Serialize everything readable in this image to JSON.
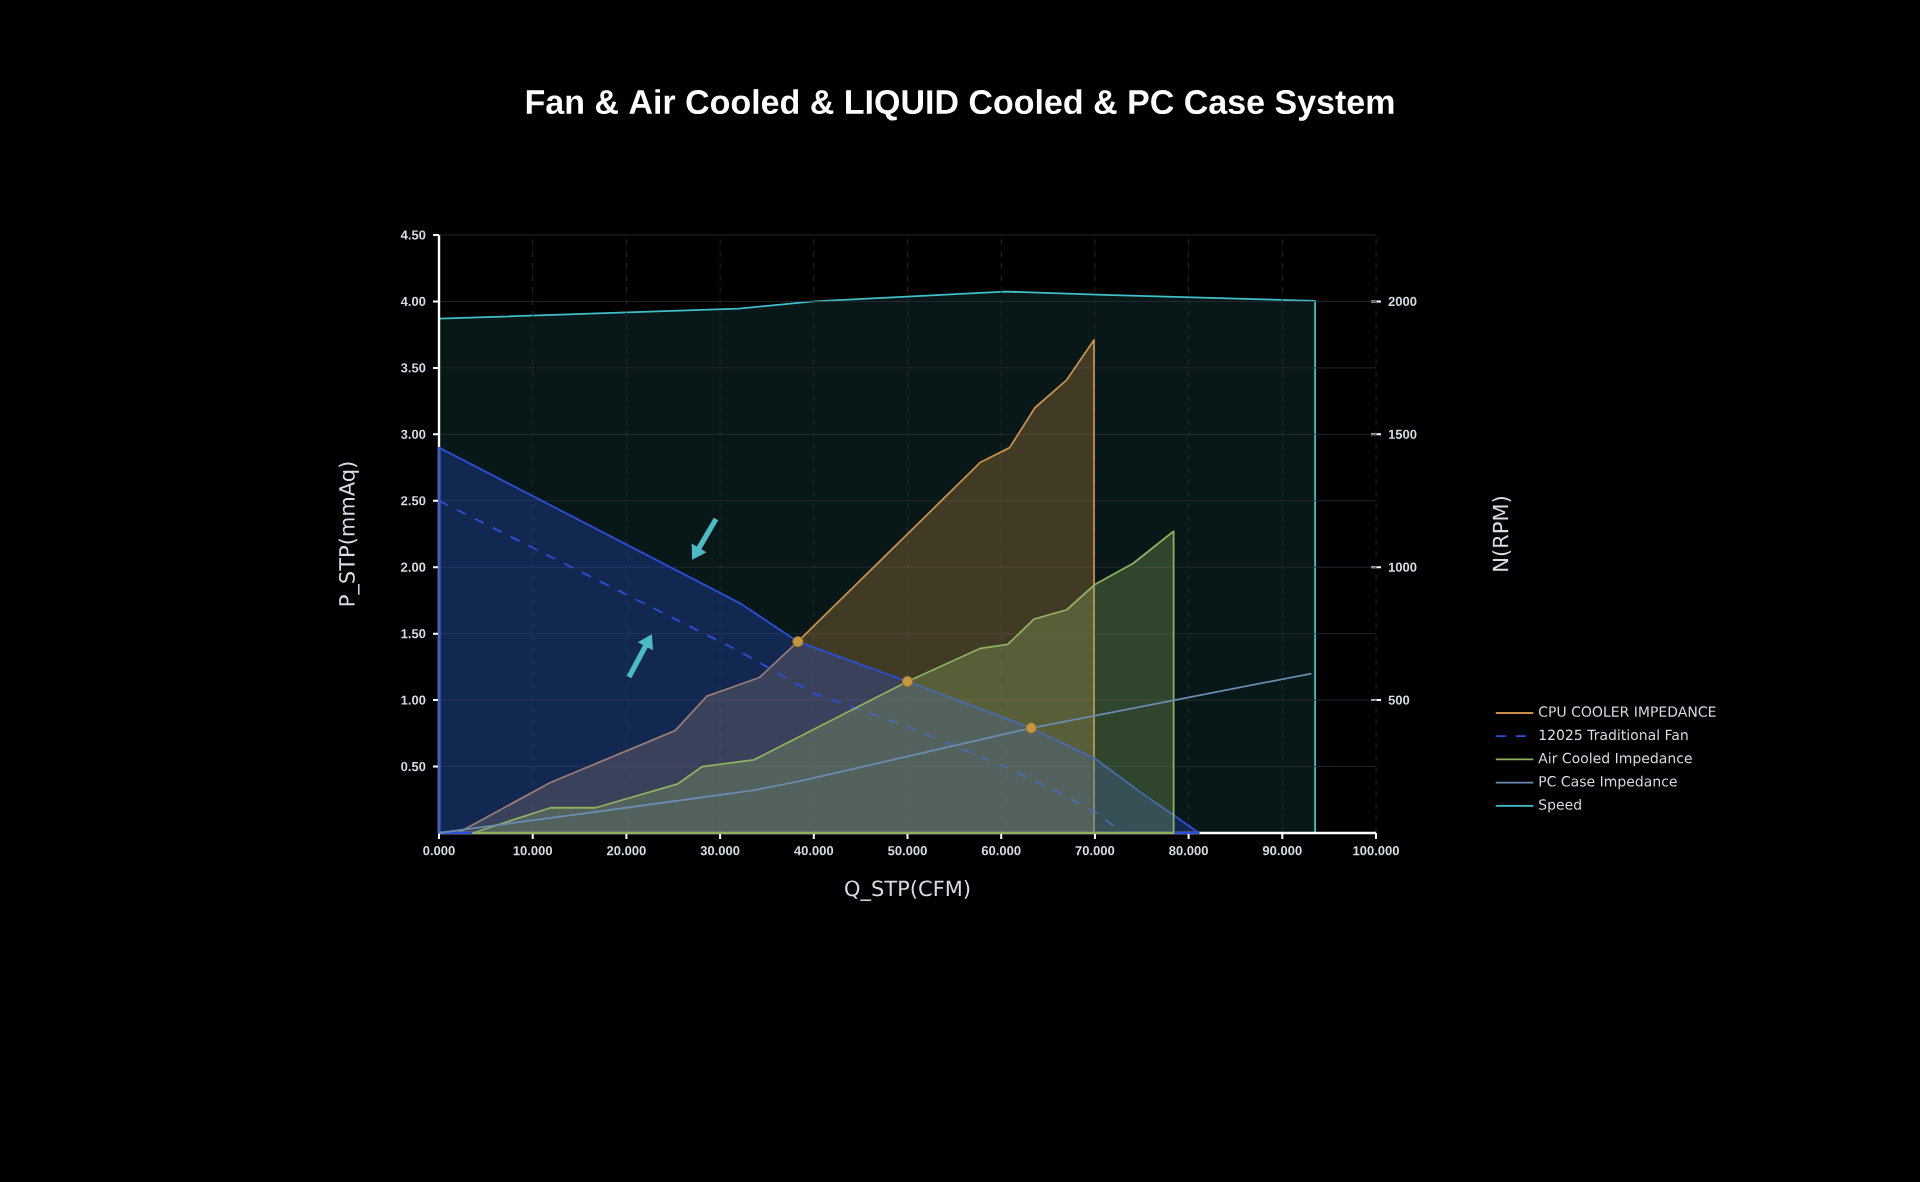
{
  "chart_data": {
    "type": "area",
    "title": "Fan & Air Cooled & LIQUID Cooled & PC Case System",
    "xlabel": "Q_STP(CFM)",
    "ylabel": "P_STP(mmAq)",
    "y2label": "N(RPM)",
    "xlim": [
      0,
      100
    ],
    "xticks": [
      {
        "value": 0,
        "label": "0.000"
      },
      {
        "value": 10,
        "label": "10.000"
      },
      {
        "value": 20,
        "label": "20.000"
      },
      {
        "value": 30,
        "label": "30.000"
      },
      {
        "value": 40,
        "label": "40.000"
      },
      {
        "value": 50,
        "label": "50.000"
      },
      {
        "value": 60,
        "label": "60.000"
      },
      {
        "value": 70,
        "label": "70.000"
      },
      {
        "value": 80,
        "label": "80.000"
      },
      {
        "value": 90,
        "label": "90.000"
      },
      {
        "value": 100,
        "label": "100.000"
      }
    ],
    "ylim": [
      0,
      4.5
    ],
    "yticks": [
      {
        "value": 0.5,
        "label": "0.50"
      },
      {
        "value": 1,
        "label": "1.00"
      },
      {
        "value": 1.5,
        "label": "1.50"
      },
      {
        "value": 2,
        "label": "2.00"
      },
      {
        "value": 2.5,
        "label": "2.50"
      },
      {
        "value": 3,
        "label": "3.00"
      },
      {
        "value": 3.5,
        "label": "3.50"
      },
      {
        "value": 4,
        "label": "4.00"
      },
      {
        "value": 4.5,
        "label": "4.50"
      }
    ],
    "y2lim": [
      0,
      2250
    ],
    "y2ticks": [
      500,
      1000,
      1500,
      2000
    ],
    "grid": true,
    "legend": "right",
    "series": [
      {
        "name": "CPU COOLER IMPEDANCE",
        "color": "#c8904a",
        "x": [
          2,
          11.9,
          25.2,
          28.6,
          34.2,
          38.3,
          57.8,
          60.9,
          63.6,
          67,
          69.9
        ],
        "values": [
          0,
          0.38,
          0.77,
          1.03,
          1.17,
          1.44,
          2.79,
          2.9,
          3.2,
          3.41,
          3.71
        ]
      },
      {
        "color": "#2a50d8",
        "x": [
          0,
          32.1,
          38.3,
          50,
          63.2,
          70,
          75,
          78.5,
          81.1
        ],
        "values": [
          2.9,
          1.73,
          1.44,
          1.14,
          0.79,
          0.56,
          0.3,
          0.13,
          0
        ]
      },
      {
        "name": "12025 Traditional Fan",
        "type": "line",
        "line_style": "dashed",
        "color": "#2a50d8",
        "x": [
          0,
          32,
          35,
          40,
          50,
          60,
          66,
          70,
          73
        ],
        "values": [
          2.5,
          1.37,
          1.25,
          1.05,
          0.8,
          0.51,
          0.31,
          0.16,
          0
        ]
      },
      {
        "name": "Air Cooled Impedance",
        "color": "#8fb060",
        "x": [
          3.6,
          11.9,
          16.7,
          25.5,
          28.1,
          33.6,
          50,
          57.8,
          60.7,
          63.5,
          67,
          70,
          74.1,
          78.4
        ],
        "values": [
          0,
          0.19,
          0.19,
          0.37,
          0.5,
          0.55,
          1.14,
          1.39,
          1.42,
          1.61,
          1.68,
          1.87,
          2.03,
          2.27
        ]
      },
      {
        "name": "PC Case Impedance",
        "type": "line",
        "color": "#6a8cb0",
        "x": [
          0,
          20,
          33.5,
          38.5,
          63.2,
          93.1
        ],
        "values": [
          0,
          0.19,
          0.32,
          0.39,
          0.79,
          1.2
        ]
      },
      {
        "name": "Speed",
        "axis": "y2",
        "color": "#40c0c8",
        "x": [
          0,
          32,
          40,
          60.4,
          71,
          93.5
        ],
        "values": [
          1935,
          1973,
          2000,
          2037,
          2025,
          2002
        ]
      },
      {
        "type": "scatter",
        "marker": "circle",
        "color": "#c8963e",
        "x": [
          38.3,
          50,
          63.2
        ],
        "values": [
          1.44,
          1.14,
          0.79
        ]
      }
    ]
  }
}
